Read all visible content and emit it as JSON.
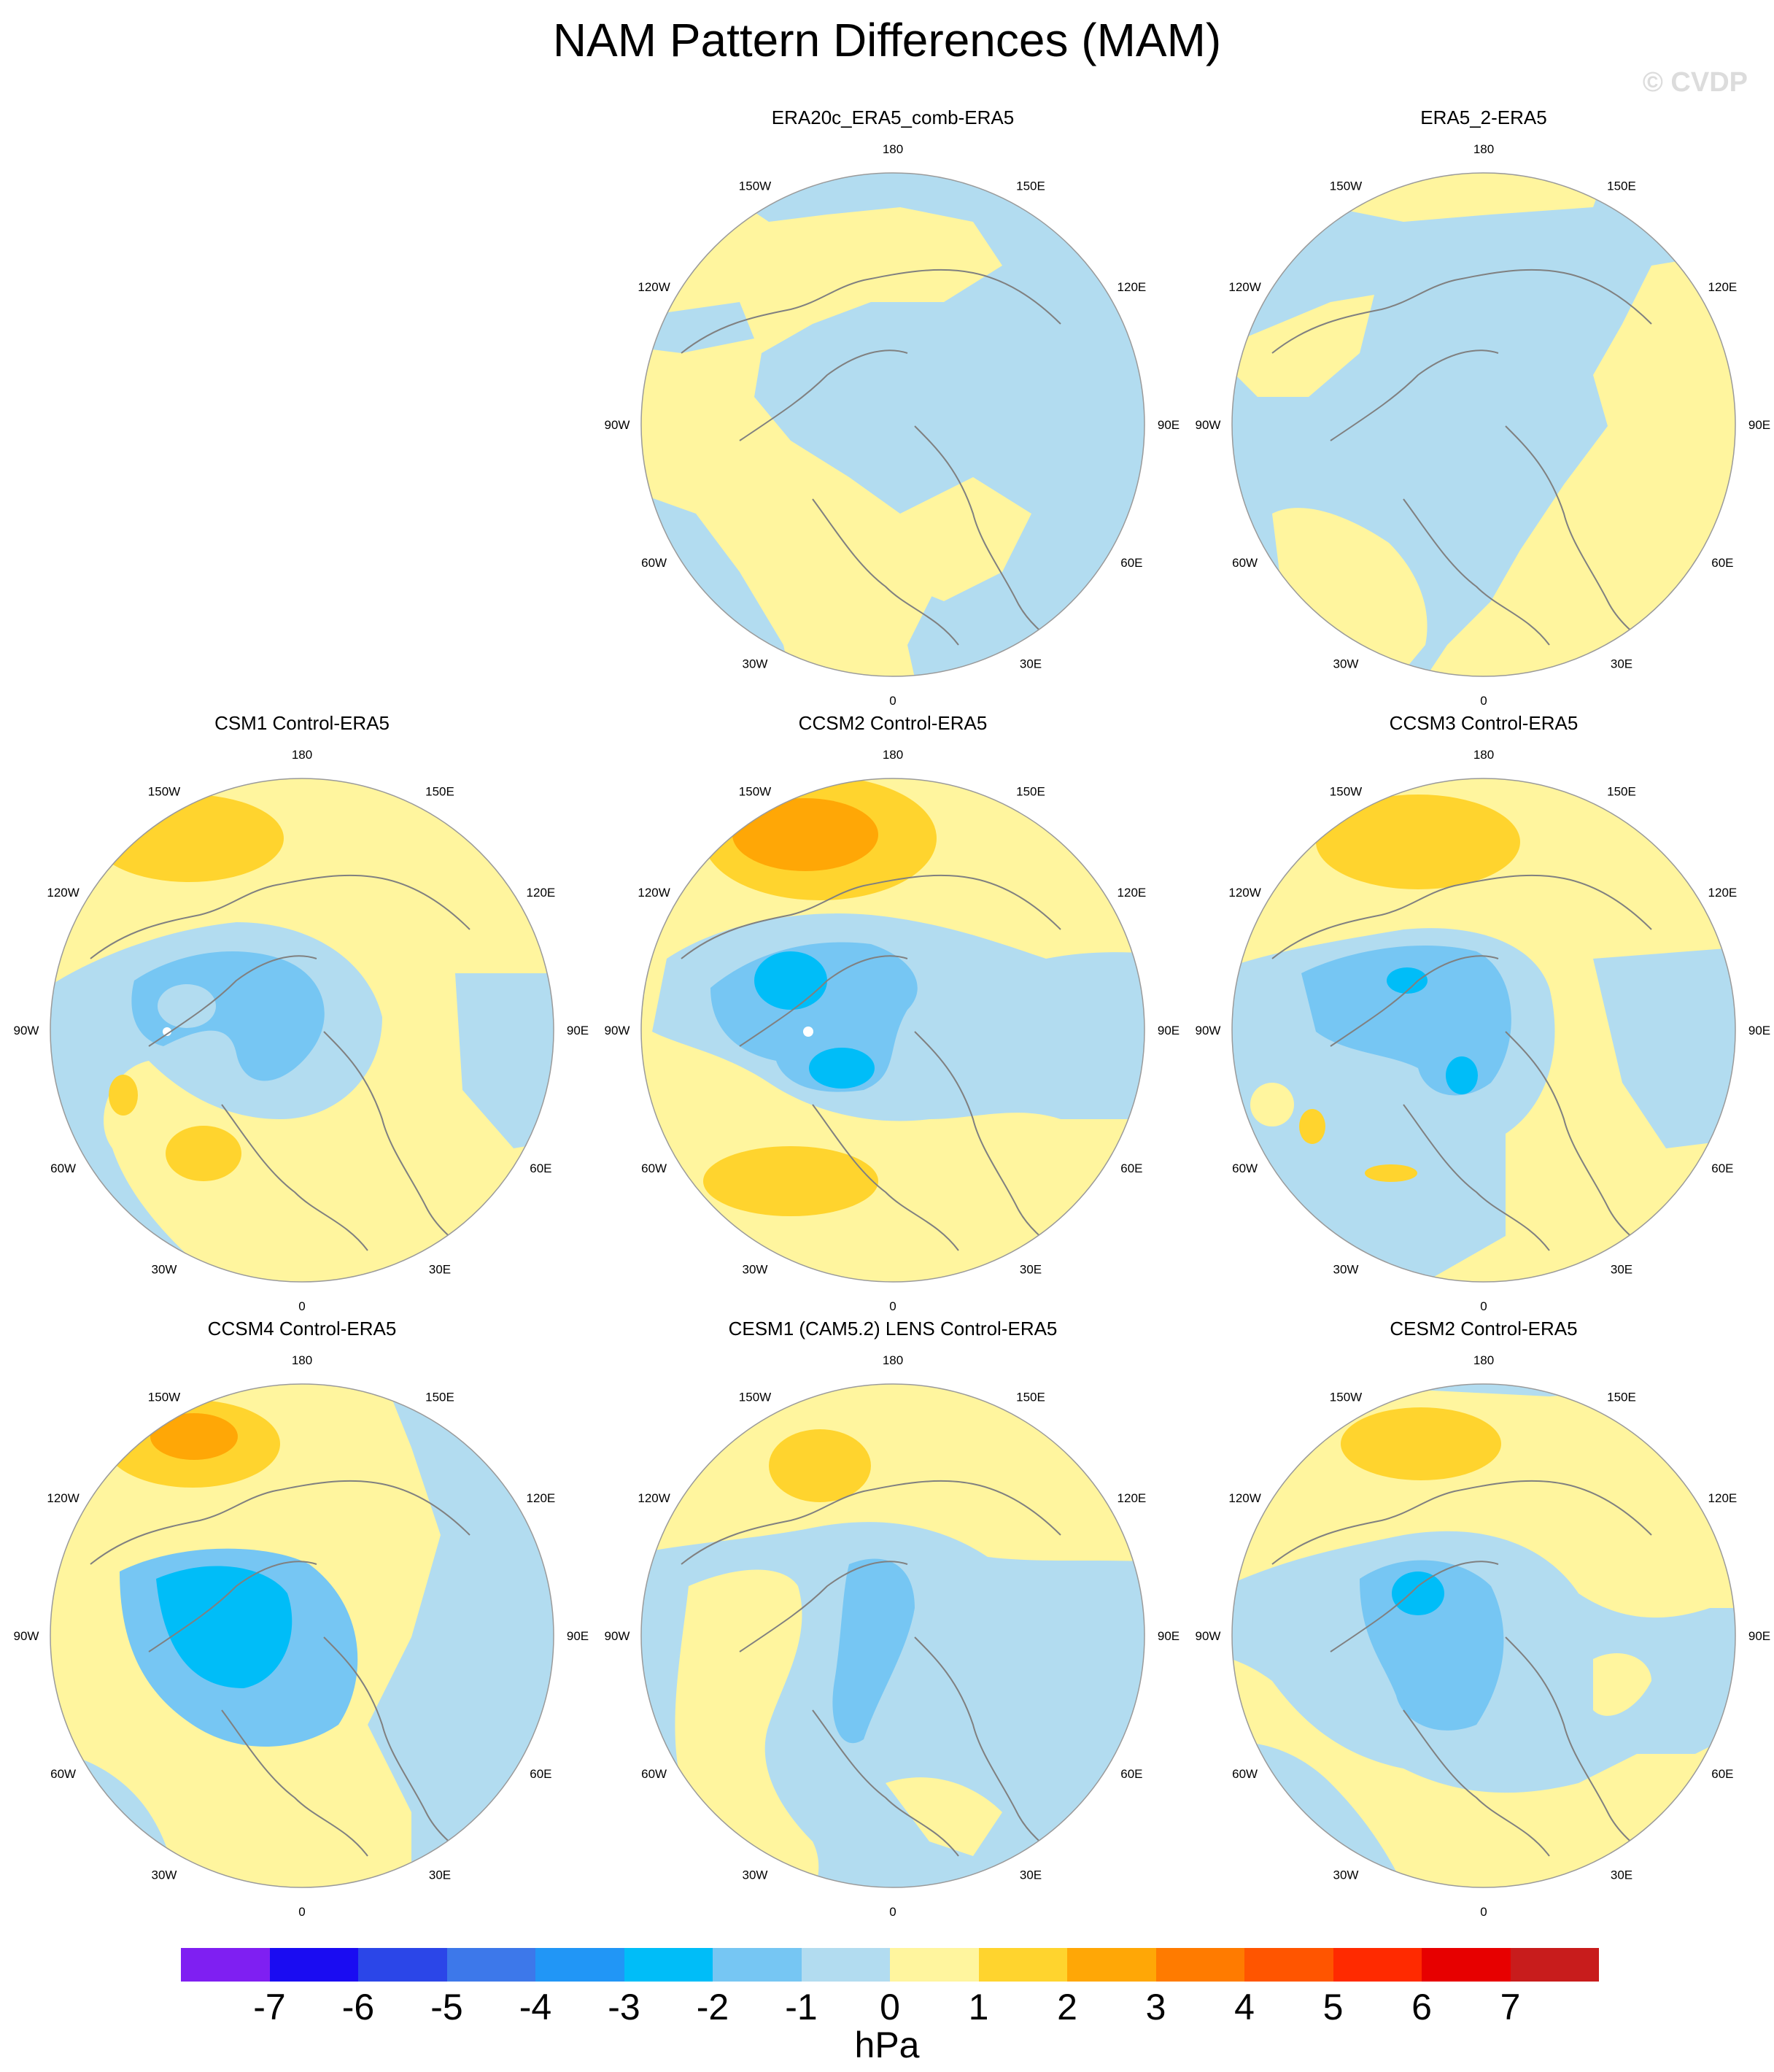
{
  "title": "NAM Pattern Differences (MAM)",
  "watermark": "© CVDP",
  "colors": {
    "neg7": "#7f1ff2",
    "neg6": "#1a0cf2",
    "neg5": "#2b46e8",
    "neg4": "#3d78ea",
    "neg3": "#2196f6",
    "neg2": "#00bdf8",
    "neg1": "#76c6f3",
    "zero_neg": "#b2dcf0",
    "zero_pos": "#fff59e",
    "pos1": "#ffd42e",
    "pos2": "#ffa706",
    "pos3": "#ff7b00",
    "pos4": "#ff5500",
    "pos5": "#ff2a00",
    "pos6": "#e70000",
    "pos7": "#c81c1c",
    "over": "#ffb3b3",
    "coast": "#808080",
    "border": "#9a9a9a"
  },
  "lon_labels": [
    "180",
    "150E",
    "120E",
    "90E",
    "60E",
    "30E",
    "0",
    "30W",
    "60W",
    "90W",
    "120W",
    "150W"
  ],
  "panels": [
    {
      "title": "ERA20c_ERA5_comb-ERA5"
    },
    {
      "title": "ERA5_2-ERA5"
    },
    {
      "title": "CSM1 Control-ERA5"
    },
    {
      "title": "CCSM2 Control-ERA5"
    },
    {
      "title": "CCSM3 Control-ERA5"
    },
    {
      "title": "CCSM4 Control-ERA5"
    },
    {
      "title": "CESM1 (CAM5.2) LENS Control-ERA5"
    },
    {
      "title": "CESM2 Control-ERA5"
    }
  ],
  "colorbar": {
    "colors": [
      "#7f1ff2",
      "#1a0cf2",
      "#2b46e8",
      "#3d78ea",
      "#2196f6",
      "#00bdf8",
      "#76c6f3",
      "#b2dcf0",
      "#fff59e",
      "#ffd42e",
      "#ffa706",
      "#ff7b00",
      "#ff5500",
      "#ff2a00",
      "#e70000",
      "#c81c1c"
    ],
    "labels": [
      "-7",
      "-6",
      "-5",
      "-4",
      "-3",
      "-2",
      "-1",
      "0",
      "1",
      "2",
      "3",
      "4",
      "5",
      "6",
      "7"
    ],
    "unit": "hPa"
  }
}
